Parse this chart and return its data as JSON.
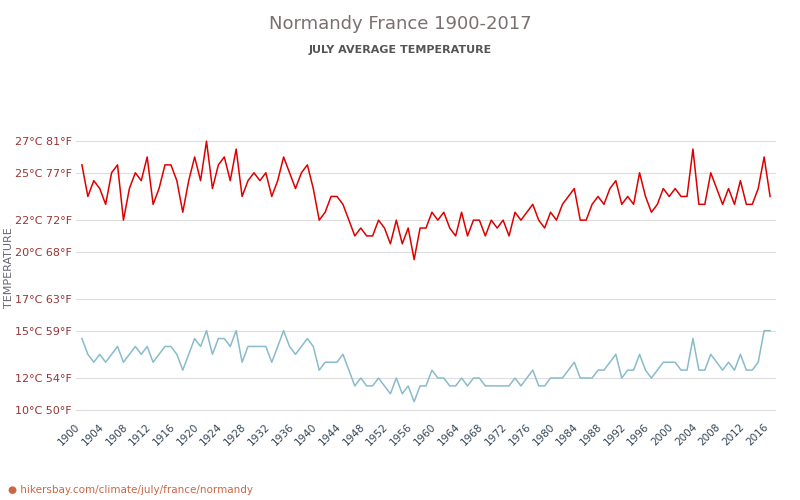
{
  "title": "Normandy France 1900-2017",
  "subtitle": "JULY AVERAGE TEMPERATURE",
  "ylabel": "TEMPERATURE",
  "website": "hikersbay.com/climate/july/france/normandy",
  "yticks_celsius": [
    27,
    25,
    22,
    20,
    17,
    15,
    12,
    10
  ],
  "yticks_labels": [
    "27°C 81°F",
    "25°C 77°F",
    "22°C 72°F",
    "20°C 68°F",
    "17°C 63°F",
    "15°C 59°F",
    "12°C 54°F",
    "10°C 50°F"
  ],
  "ylim": [
    9.5,
    28.5
  ],
  "xlim": [
    1899,
    2017
  ],
  "years": [
    1900,
    1901,
    1902,
    1903,
    1904,
    1905,
    1906,
    1907,
    1908,
    1909,
    1910,
    1911,
    1912,
    1913,
    1914,
    1915,
    1916,
    1917,
    1918,
    1919,
    1920,
    1921,
    1922,
    1923,
    1924,
    1925,
    1926,
    1927,
    1928,
    1929,
    1930,
    1931,
    1932,
    1933,
    1934,
    1935,
    1936,
    1937,
    1938,
    1939,
    1940,
    1941,
    1942,
    1943,
    1944,
    1945,
    1946,
    1947,
    1948,
    1949,
    1950,
    1951,
    1952,
    1953,
    1954,
    1955,
    1956,
    1957,
    1958,
    1959,
    1960,
    1961,
    1962,
    1963,
    1964,
    1965,
    1966,
    1967,
    1968,
    1969,
    1970,
    1971,
    1972,
    1973,
    1974,
    1975,
    1976,
    1977,
    1978,
    1979,
    1980,
    1981,
    1982,
    1983,
    1984,
    1985,
    1986,
    1987,
    1988,
    1989,
    1990,
    1991,
    1992,
    1993,
    1994,
    1995,
    1996,
    1997,
    1998,
    1999,
    2000,
    2001,
    2002,
    2003,
    2004,
    2005,
    2006,
    2007,
    2008,
    2009,
    2010,
    2011,
    2012,
    2013,
    2014,
    2015,
    2016
  ],
  "day_temps": [
    25.5,
    23.5,
    24.5,
    24.0,
    23.0,
    25.0,
    25.5,
    22.0,
    24.0,
    25.0,
    24.5,
    26.0,
    23.0,
    24.0,
    25.5,
    25.5,
    24.5,
    22.5,
    24.5,
    26.0,
    24.5,
    27.0,
    24.0,
    25.5,
    26.0,
    24.5,
    26.5,
    23.5,
    24.5,
    25.0,
    24.5,
    25.0,
    23.5,
    24.5,
    26.0,
    25.0,
    24.0,
    25.0,
    25.5,
    24.0,
    22.0,
    22.5,
    23.5,
    23.5,
    23.0,
    22.0,
    21.0,
    21.5,
    21.0,
    21.0,
    22.0,
    21.5,
    20.5,
    22.0,
    20.5,
    21.5,
    19.5,
    21.5,
    21.5,
    22.5,
    22.0,
    22.5,
    21.5,
    21.0,
    22.5,
    21.0,
    22.0,
    22.0,
    21.0,
    22.0,
    21.5,
    22.0,
    21.0,
    22.5,
    22.0,
    22.5,
    23.0,
    22.0,
    21.5,
    22.5,
    22.0,
    23.0,
    23.5,
    24.0,
    22.0,
    22.0,
    23.0,
    23.5,
    23.0,
    24.0,
    24.5,
    23.0,
    23.5,
    23.0,
    25.0,
    23.5,
    22.5,
    23.0,
    24.0,
    23.5,
    24.0,
    23.5,
    23.5,
    26.5,
    23.0,
    23.0,
    25.0,
    24.0,
    23.0,
    24.0,
    23.0,
    24.5,
    23.0,
    23.0,
    24.0,
    26.0,
    23.5
  ],
  "night_temps": [
    14.5,
    13.5,
    13.0,
    13.5,
    13.0,
    13.5,
    14.0,
    13.0,
    13.5,
    14.0,
    13.5,
    14.0,
    13.0,
    13.5,
    14.0,
    14.0,
    13.5,
    12.5,
    13.5,
    14.5,
    14.0,
    15.0,
    13.5,
    14.5,
    14.5,
    14.0,
    15.0,
    13.0,
    14.0,
    14.0,
    14.0,
    14.0,
    13.0,
    14.0,
    15.0,
    14.0,
    13.5,
    14.0,
    14.5,
    14.0,
    12.5,
    13.0,
    13.0,
    13.0,
    13.5,
    12.5,
    11.5,
    12.0,
    11.5,
    11.5,
    12.0,
    11.5,
    11.0,
    12.0,
    11.0,
    11.5,
    10.5,
    11.5,
    11.5,
    12.5,
    12.0,
    12.0,
    11.5,
    11.5,
    12.0,
    11.5,
    12.0,
    12.0,
    11.5,
    11.5,
    11.5,
    11.5,
    11.5,
    12.0,
    11.5,
    12.0,
    12.5,
    11.5,
    11.5,
    12.0,
    12.0,
    12.0,
    12.5,
    13.0,
    12.0,
    12.0,
    12.0,
    12.5,
    12.5,
    13.0,
    13.5,
    12.0,
    12.5,
    12.5,
    13.5,
    12.5,
    12.0,
    12.5,
    13.0,
    13.0,
    13.0,
    12.5,
    12.5,
    14.5,
    12.5,
    12.5,
    13.5,
    13.0,
    12.5,
    13.0,
    12.5,
    13.5,
    12.5,
    12.5,
    13.0,
    15.0,
    15.0
  ],
  "day_color": "#dd0000",
  "night_color": "#88bbcc",
  "title_color": "#7a7070",
  "subtitle_color": "#555555",
  "ylabel_color": "#666677",
  "ytick_color": "#993333",
  "xtick_color": "#334455",
  "grid_color": "#dddddd",
  "bg_color": "#ffffff",
  "website_color": "#cc6644",
  "legend_text_color": "#334455"
}
